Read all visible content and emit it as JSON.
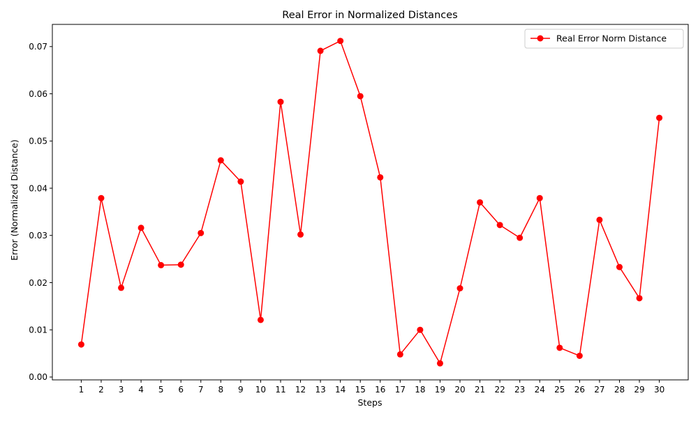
{
  "chart_data": {
    "type": "line",
    "title": "Real Error in Normalized Distances",
    "xlabel": "Steps",
    "ylabel": "Error (Normalized Distance)",
    "x": [
      1,
      2,
      3,
      4,
      5,
      6,
      7,
      8,
      9,
      10,
      11,
      12,
      13,
      14,
      15,
      16,
      17,
      18,
      19,
      20,
      21,
      22,
      23,
      24,
      25,
      26,
      27,
      28,
      29,
      30
    ],
    "x_tick_labels": [
      "1",
      "2",
      "3",
      "4",
      "5",
      "6",
      "7",
      "8",
      "9",
      "10",
      "11",
      "12",
      "13",
      "14",
      "15",
      "16",
      "17",
      "18",
      "19",
      "20",
      "21",
      "22",
      "23",
      "24",
      "25",
      "26",
      "27",
      "28",
      "29",
      "30"
    ],
    "xlim": [
      -0.45,
      31.45
    ],
    "ylim": [
      -0.0006,
      0.0747
    ],
    "y_ticks": [
      0.0,
      0.01,
      0.02,
      0.03,
      0.04,
      0.05,
      0.06,
      0.07
    ],
    "y_tick_labels": [
      "0.00",
      "0.01",
      "0.02",
      "0.03",
      "0.04",
      "0.05",
      "0.06",
      "0.07"
    ],
    "series": [
      {
        "name": "Real Error Norm Distance",
        "color": "#ff0000",
        "marker": "circle",
        "values": [
          0.0069,
          0.0379,
          0.0189,
          0.0316,
          0.0237,
          0.0238,
          0.0305,
          0.0459,
          0.0414,
          0.0121,
          0.0583,
          0.0302,
          0.0691,
          0.0712,
          0.0595,
          0.0423,
          0.0048,
          0.01,
          0.0029,
          0.0188,
          0.037,
          0.0322,
          0.0295,
          0.0379,
          0.0062,
          0.0045,
          0.0333,
          0.0233,
          0.0167,
          0.0549
        ]
      }
    ],
    "grid": false,
    "legend_position": "top-right"
  }
}
